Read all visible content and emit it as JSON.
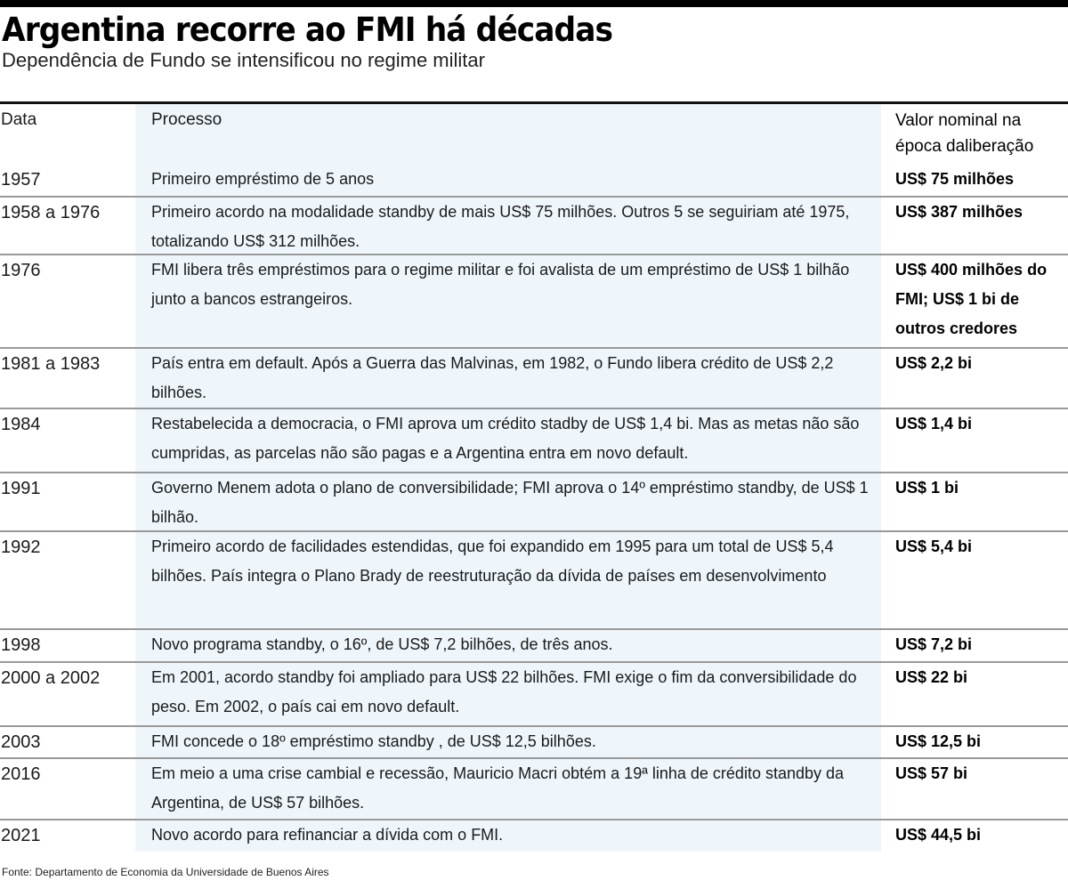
{
  "header": {
    "title": "Argentina recorre ao FMI há décadas",
    "subtitle": "Dependência de Fundo se intensificou no regime militar"
  },
  "table": {
    "columns": [
      "Data",
      "Processo",
      "Valor nominal na época daliberação"
    ],
    "rows": [
      {
        "date": "1957",
        "process": "Primeiro empréstimo de 5 anos",
        "value": "US$ 75 milhões"
      },
      {
        "date": "1958 a 1976",
        "process": "Primeiro acordo na modalidade standby de mais US$ 75 milhões. Outros 5 se seguiriam até 1975, totalizando US$ 312 milhões.",
        "value": "US$ 387 milhões"
      },
      {
        "date": "1976",
        "process": "FMI libera três empréstimos para o regime militar e foi avalista de um empréstimo de US$ 1 bilhão junto a bancos estrangeiros.",
        "value": "US$ 400 milhões do FMI; US$ 1 bi de outros credores"
      },
      {
        "date": "1981 a 1983",
        "process": "País entra em default. Após a Guerra das Malvinas, em 1982,  o Fundo libera crédito de US$ 2,2 bilhões.",
        "value": "US$ 2,2 bi"
      },
      {
        "date": "1984",
        "process": "Restabelecida a democracia, o FMI aprova um crédito stadby de US$ 1,4 bi. Mas as metas não são cumpridas, as parcelas não são pagas e a Argentina entra em novo default.",
        "value": "US$ 1,4 bi"
      },
      {
        "date": "1991",
        "process": "Governo Menem adota o plano de conversibilidade; FMI aprova o 14º empréstimo standby, de US$ 1 bilhão.",
        "value": "US$ 1 bi"
      },
      {
        "date": "1992",
        "process": "Primeiro acordo de facilidades estendidas, que foi expandido em 1995 para um total de US$ 5,4 bilhões. País integra o Plano Brady de reestruturação da dívida de países em desenvolvimento",
        "value": "US$ 5,4 bi"
      },
      {
        "date": "1998",
        "process": "Novo programa standby, o 16º, de US$ 7,2 bilhões, de três anos.",
        "value": "US$ 7,2 bi"
      },
      {
        "date": "2000 a 2002",
        "process": "Em 2001, acordo standby foi ampliado para US$ 22 bilhões. FMI exige o fim da conversibilidade do peso. Em 2002, o país cai em novo default.",
        "value": "US$ 22 bi"
      },
      {
        "date": "2003",
        "process": "FMI concede o 18º empréstimo standby , de US$ 12,5 bilhões.",
        "value": "US$ 12,5 bi"
      },
      {
        "date": "2016",
        "process": "Em meio a uma crise cambial e recessão, Mauricio Macri obtém  a 19ª linha de crédito standby da Argentina, de US$ 57 bilhões.",
        "value": "US$ 57 bi"
      },
      {
        "date": "2021",
        "process": "Novo acordo para refinanciar a dívida com o FMI.",
        "value": "US$ 44,5 bi"
      }
    ]
  },
  "footer": {
    "source": "Fonte: Departamento de Economia da Universidade de Buenos Aires"
  },
  "colors": {
    "process_column_bg": "#eef6fc",
    "rule": "#999999"
  }
}
